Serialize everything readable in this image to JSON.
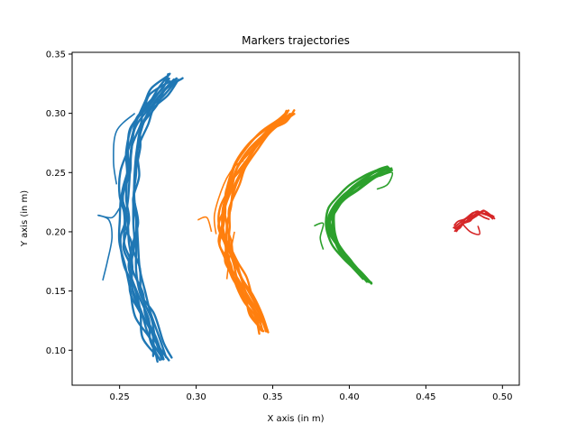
{
  "chart_data": {
    "type": "line",
    "title": "Markers trajectories",
    "xlabel": "X axis (in m)",
    "ylabel": "Y axis (in m)",
    "xlim": [
      0.219,
      0.511
    ],
    "ylim": [
      0.0705,
      0.3515
    ],
    "xticks": [
      0.25,
      0.3,
      0.35,
      0.4,
      0.45,
      0.5
    ],
    "xtick_labels": [
      "0.25",
      "0.30",
      "0.35",
      "0.40",
      "0.45",
      "0.50"
    ],
    "yticks": [
      0.1,
      0.15,
      0.2,
      0.25,
      0.3,
      0.35
    ],
    "ytick_labels": [
      "0.10",
      "0.15",
      "0.20",
      "0.25",
      "0.30",
      "0.35"
    ],
    "grid": false,
    "legend": "none",
    "series": [
      {
        "color": "#1f77b4",
        "stroke": 2.4,
        "x": [
          0.277,
          0.272,
          0.266,
          0.261,
          0.258,
          0.256,
          0.255,
          0.255,
          0.256,
          0.258,
          0.262,
          0.268,
          0.276,
          0.285
        ],
        "y": [
          0.093,
          0.11,
          0.13,
          0.15,
          0.17,
          0.19,
          0.21,
          0.23,
          0.25,
          0.27,
          0.29,
          0.305,
          0.318,
          0.33
        ],
        "spread_x": 0.01,
        "spread_y": 0.008,
        "passes": 10,
        "stray": [
          [
            [
              0.239,
              0.159
            ],
            [
              0.242,
              0.175
            ],
            [
              0.245,
              0.195
            ],
            [
              0.243,
              0.21
            ],
            [
              0.236,
              0.214
            ],
            [
              0.245,
              0.212
            ],
            [
              0.25,
              0.22
            ]
          ],
          [
            [
              0.248,
              0.24
            ],
            [
              0.246,
              0.26
            ],
            [
              0.248,
              0.285
            ],
            [
              0.26,
              0.3
            ]
          ]
        ]
      },
      {
        "color": "#ff7f0e",
        "stroke": 2.4,
        "x": [
          0.345,
          0.34,
          0.334,
          0.328,
          0.323,
          0.32,
          0.319,
          0.32,
          0.323,
          0.329,
          0.337,
          0.346,
          0.355,
          0.362
        ],
        "y": [
          0.116,
          0.13,
          0.145,
          0.16,
          0.175,
          0.19,
          0.205,
          0.22,
          0.238,
          0.255,
          0.27,
          0.283,
          0.293,
          0.3
        ],
        "spread_x": 0.007,
        "spread_y": 0.006,
        "passes": 10,
        "stray": [
          [
            [
              0.301,
              0.21
            ],
            [
              0.307,
              0.212
            ],
            [
              0.31,
              0.2
            ]
          ],
          [
            [
              0.313,
              0.198
            ],
            [
              0.312,
              0.215
            ],
            [
              0.318,
              0.24
            ],
            [
              0.325,
              0.255
            ],
            [
              0.331,
              0.26
            ]
          ],
          [
            [
              0.32,
              0.16
            ],
            [
              0.322,
              0.18
            ],
            [
              0.325,
              0.2
            ]
          ]
        ]
      },
      {
        "color": "#2ca02c",
        "stroke": 2.4,
        "x": [
          0.412,
          0.405,
          0.398,
          0.392,
          0.388,
          0.387,
          0.389,
          0.395,
          0.403,
          0.412,
          0.42,
          0.425
        ],
        "y": [
          0.158,
          0.168,
          0.177,
          0.188,
          0.198,
          0.208,
          0.218,
          0.229,
          0.238,
          0.246,
          0.251,
          0.254
        ],
        "spread_x": 0.005,
        "spread_y": 0.004,
        "passes": 9,
        "stray": [
          [
            [
              0.377,
              0.205
            ],
            [
              0.383,
              0.207
            ],
            [
              0.381,
              0.195
            ],
            [
              0.383,
              0.185
            ]
          ],
          [
            [
              0.42,
              0.247
            ],
            [
              0.428,
              0.25
            ],
            [
              0.425,
              0.24
            ],
            [
              0.418,
              0.236
            ]
          ]
        ]
      },
      {
        "color": "#d62728",
        "stroke": 1.8,
        "x": [
          0.47,
          0.474,
          0.478,
          0.482,
          0.486,
          0.49,
          0.494
        ],
        "y": [
          0.202,
          0.206,
          0.21,
          0.213,
          0.215,
          0.213,
          0.211
        ],
        "spread_x": 0.004,
        "spread_y": 0.005,
        "passes": 7,
        "stray": [
          [
            [
              0.473,
              0.208
            ],
            [
              0.479,
              0.2
            ],
            [
              0.485,
              0.198
            ],
            [
              0.484,
              0.205
            ]
          ]
        ]
      }
    ]
  }
}
